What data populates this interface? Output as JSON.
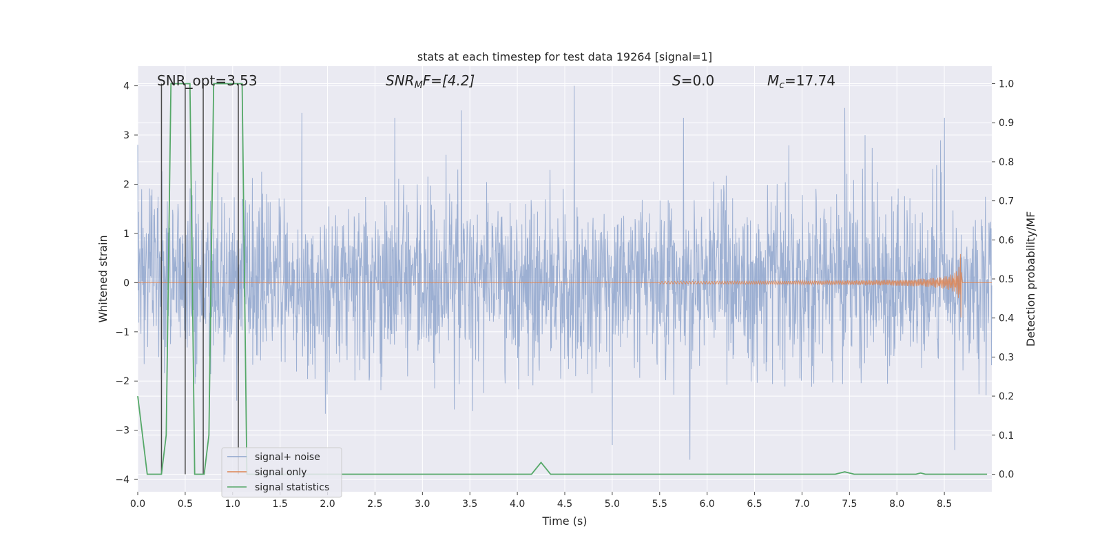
{
  "chart_data": {
    "type": "line",
    "title": "stats at each timestep for test data 19264 [signal=1]",
    "xlabel": "Time (s)",
    "ylabel": "Whitened strain",
    "ylabel_right": "Detection probability/MF",
    "xlim": [
      0.0,
      9.0
    ],
    "ylim": [
      -4.25,
      4.4
    ],
    "ylim_right": [
      -0.045,
      1.045
    ],
    "x_ticks": [
      "0.0",
      "0.5",
      "1.0",
      "1.5",
      "2.0",
      "2.5",
      "3.0",
      "3.5",
      "4.0",
      "4.5",
      "5.0",
      "5.5",
      "6.0",
      "6.5",
      "7.0",
      "7.5",
      "8.0",
      "8.5"
    ],
    "y_ticks_left": [
      "4",
      "3",
      "2",
      "1",
      "0",
      "−1",
      "−2",
      "−3",
      "−4"
    ],
    "y_ticks_right": [
      "1.0",
      "0.9",
      "0.8",
      "0.7",
      "0.6",
      "0.5",
      "0.4",
      "0.3",
      "0.2",
      "0.1",
      "0.0"
    ],
    "annotations": {
      "snr_opt": "SNR_opt=3.53",
      "snr_mf_sym": "SNR",
      "snr_mf_sub": "M",
      "snr_mf_rest": "F=[4.2]",
      "s_sym": "S",
      "s_rest": "=0.0",
      "mc_sym": "M",
      "mc_sub": "c",
      "mc_rest": "=17.74"
    },
    "legend": {
      "position": "lower-left",
      "entries": [
        "signal+ noise",
        "signal only",
        "signal statistics"
      ]
    },
    "colors": {
      "noise": "#8ea4cd",
      "signal": "#dd8452",
      "stats": "#55a868",
      "vline": "#4a4a4a",
      "background": "#eaeaf2",
      "grid": "#ffffff"
    },
    "series": [
      {
        "name": "signal+ noise",
        "noise_envelope": {
          "std": 0.85,
          "t_start": 0.0,
          "t_end": 9.0
        },
        "peaks": [
          {
            "x": 0.0,
            "y": 2.8
          },
          {
            "x": 1.73,
            "y": 3.45
          },
          {
            "x": 2.71,
            "y": 3.35
          },
          {
            "x": 3.41,
            "y": 3.5
          },
          {
            "x": 4.6,
            "y": 4.0
          },
          {
            "x": 5.75,
            "y": 3.35
          },
          {
            "x": 7.45,
            "y": 3.55
          },
          {
            "x": 8.5,
            "y": 3.35
          },
          {
            "x": 5.82,
            "y": -3.6
          },
          {
            "x": 8.61,
            "y": -3.4
          },
          {
            "x": 5.0,
            "y": -3.3
          }
        ]
      },
      {
        "name": "signal only",
        "chirp": {
          "t_start": 5.5,
          "t_merger": 8.68,
          "peak_amplitude": 0.82
        }
      },
      {
        "name": "signal statistics",
        "x": [
          0.0,
          0.05,
          0.1,
          0.15,
          0.2,
          0.25,
          0.3,
          0.35,
          0.4,
          0.45,
          0.5,
          0.55,
          0.6,
          0.65,
          0.7,
          0.75,
          0.8,
          0.85,
          0.9,
          0.95,
          1.0,
          1.05,
          1.1,
          1.15,
          1.2,
          4.15,
          4.25,
          4.35,
          7.35,
          7.45,
          7.55,
          8.2,
          8.25,
          8.3,
          8.95
        ],
        "y": [
          0.2,
          0.1,
          0.0,
          0.0,
          0.0,
          0.0,
          0.1,
          1.0,
          1.0,
          1.0,
          1.0,
          1.0,
          0.0,
          0.0,
          0.0,
          0.1,
          1.0,
          1.0,
          1.0,
          1.0,
          1.0,
          1.0,
          1.0,
          0.0,
          0.0,
          0.0,
          0.03,
          0.0,
          0.0,
          0.006,
          0.0,
          0.0,
          0.003,
          0.0,
          0.0
        ]
      }
    ],
    "vlines": [
      0.25,
      0.5,
      0.69,
      1.06
    ]
  }
}
